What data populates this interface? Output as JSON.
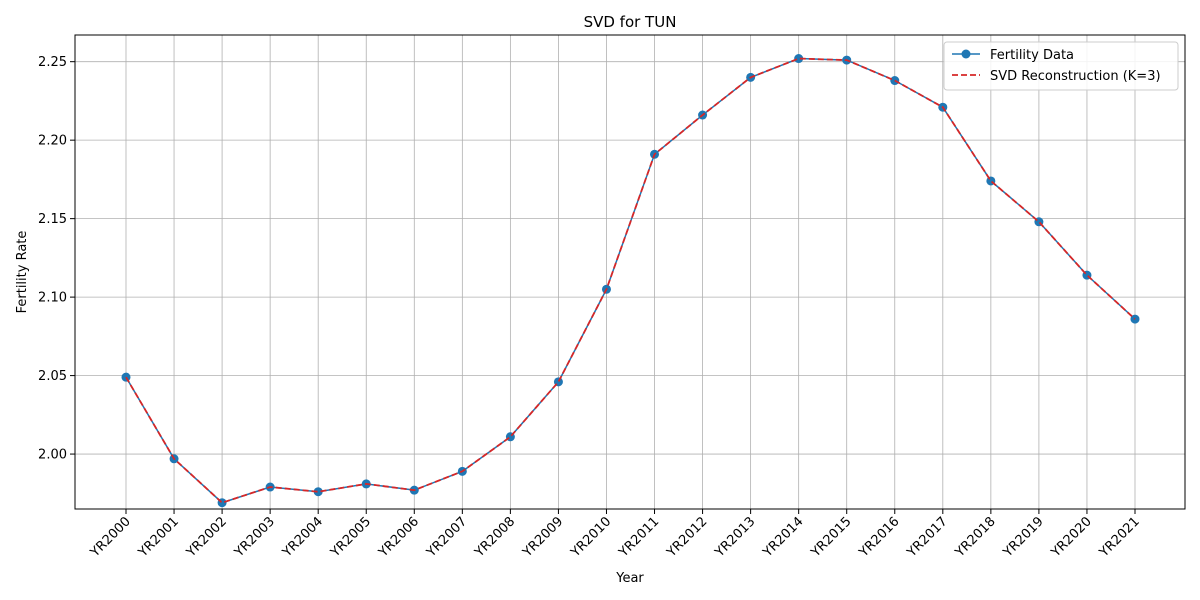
{
  "chart_data": {
    "type": "line",
    "title": "SVD for TUN",
    "xlabel": "Year",
    "ylabel": "Fertility Rate",
    "categories": [
      "YR2000",
      "YR2001",
      "YR2002",
      "YR2003",
      "YR2004",
      "YR2005",
      "YR2006",
      "YR2007",
      "YR2008",
      "YR2009",
      "YR2010",
      "YR2011",
      "YR2012",
      "YR2013",
      "YR2014",
      "YR2015",
      "YR2016",
      "YR2017",
      "YR2018",
      "YR2019",
      "YR2020",
      "YR2021"
    ],
    "yticks": [
      "2.00",
      "2.05",
      "2.10",
      "2.15",
      "2.20",
      "2.25"
    ],
    "ylim": [
      1.965,
      2.267
    ],
    "grid": true,
    "legend_position": "top-right",
    "series": [
      {
        "name": "Fertility Data",
        "color": "#1f77b4",
        "style": "solid-with-markers",
        "values": [
          2.049,
          1.997,
          1.969,
          1.979,
          1.976,
          1.981,
          1.977,
          1.989,
          2.011,
          2.046,
          2.105,
          2.191,
          2.216,
          2.24,
          2.252,
          2.251,
          2.238,
          2.221,
          2.174,
          2.148,
          2.114,
          2.086
        ]
      },
      {
        "name": "SVD Reconstruction (K=3)",
        "color": "#d62728",
        "style": "dashed",
        "values": [
          2.049,
          1.997,
          1.969,
          1.979,
          1.976,
          1.981,
          1.977,
          1.989,
          2.011,
          2.046,
          2.105,
          2.191,
          2.216,
          2.24,
          2.252,
          2.251,
          2.238,
          2.221,
          2.174,
          2.148,
          2.114,
          2.086
        ]
      }
    ]
  }
}
